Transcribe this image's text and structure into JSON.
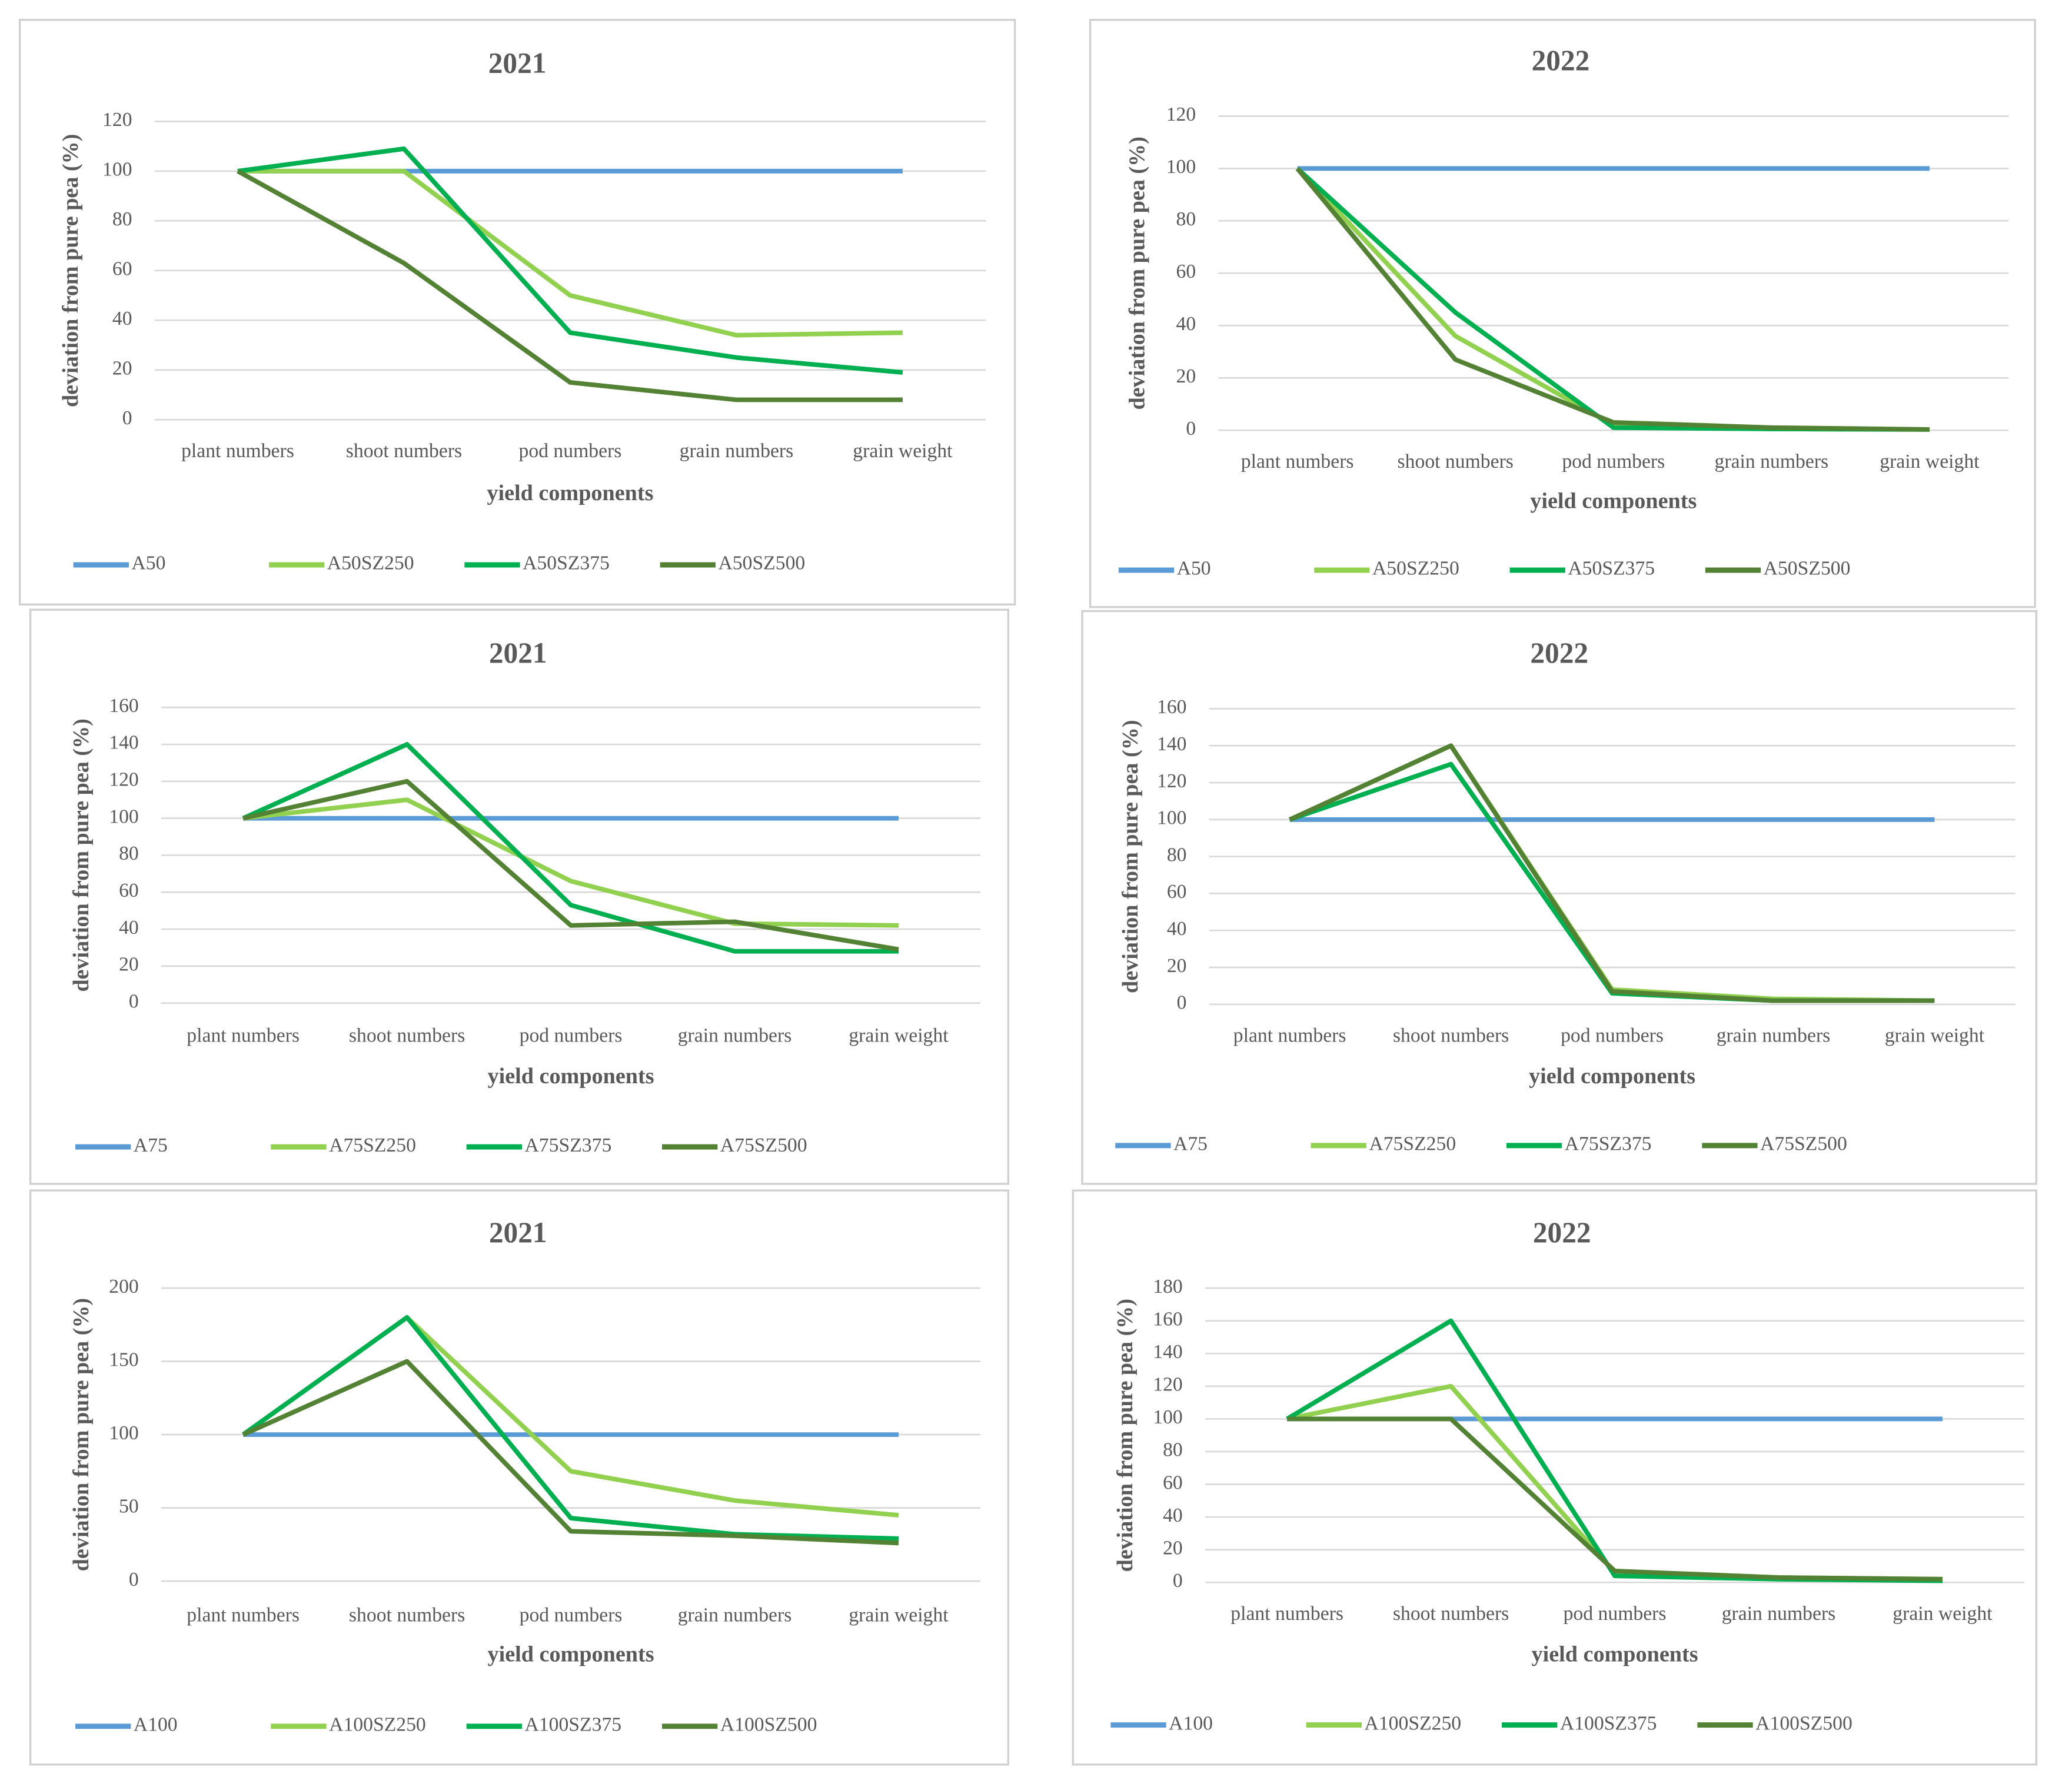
{
  "chart_data": [
    {
      "type": "line",
      "title": "2021",
      "x_label": "yield components",
      "y_label": "deviation from pure pea (%)",
      "categories": [
        "plant numbers",
        "shoot numbers",
        "pod numbers",
        "grain numbers",
        "grain weight"
      ],
      "ylim": [
        0,
        120
      ],
      "yticks": [
        0,
        20,
        40,
        60,
        80,
        100,
        120
      ],
      "grid": true,
      "series": [
        {
          "name": "A50",
          "color": "#5b9bd5",
          "values": [
            100,
            100,
            100,
            100,
            100
          ]
        },
        {
          "name": "A50SZ250",
          "color": "#92d050",
          "values": [
            100,
            100,
            50,
            34,
            35
          ]
        },
        {
          "name": "A50SZ375",
          "color": "#00b050",
          "values": [
            100,
            109,
            35,
            25,
            19
          ]
        },
        {
          "name": "A50SZ500",
          "color": "#548235",
          "values": [
            100,
            63,
            15,
            8,
            8
          ]
        }
      ]
    },
    {
      "type": "line",
      "title": "2022",
      "x_label": "yield components",
      "y_label": "deviation from pure pea (%)",
      "categories": [
        "plant numbers",
        "shoot numbers",
        "pod numbers",
        "grain numbers",
        "grain weight"
      ],
      "ylim": [
        0,
        120
      ],
      "yticks": [
        0,
        20,
        40,
        60,
        80,
        100,
        120
      ],
      "grid": true,
      "series": [
        {
          "name": "A50",
          "color": "#5b9bd5",
          "values": [
            100,
            100,
            100,
            100,
            100
          ]
        },
        {
          "name": "A50SZ250",
          "color": "#92d050",
          "values": [
            100,
            36,
            2,
            0.5,
            0.3
          ]
        },
        {
          "name": "A50SZ375",
          "color": "#00b050",
          "values": [
            100,
            45,
            1,
            0.5,
            0.3
          ]
        },
        {
          "name": "A50SZ500",
          "color": "#548235",
          "values": [
            100,
            27,
            3,
            1,
            0.3
          ]
        }
      ]
    },
    {
      "type": "line",
      "title": "2021",
      "x_label": "yield components",
      "y_label": "deviation from pure pea (%)",
      "categories": [
        "plant numbers",
        "shoot numbers",
        "pod numbers",
        "grain numbers",
        "grain weight"
      ],
      "ylim": [
        0,
        160
      ],
      "yticks": [
        0,
        20,
        40,
        60,
        80,
        100,
        120,
        140,
        160
      ],
      "grid": true,
      "series": [
        {
          "name": "A75",
          "color": "#5b9bd5",
          "values": [
            100,
            100,
            100,
            100,
            100
          ]
        },
        {
          "name": "A75SZ250",
          "color": "#92d050",
          "values": [
            100,
            110,
            66,
            43,
            42
          ]
        },
        {
          "name": "A75SZ375",
          "color": "#00b050",
          "values": [
            100,
            140,
            53,
            28,
            28
          ]
        },
        {
          "name": "A75SZ500",
          "color": "#548235",
          "values": [
            100,
            120,
            42,
            44,
            29
          ]
        }
      ]
    },
    {
      "type": "line",
      "title": "2022",
      "x_label": "yield components",
      "y_label": "deviation from pure pea (%)",
      "categories": [
        "plant numbers",
        "shoot numbers",
        "pod numbers",
        "grain numbers",
        "grain weight"
      ],
      "ylim": [
        0,
        160
      ],
      "yticks": [
        0,
        20,
        40,
        60,
        80,
        100,
        120,
        140,
        160
      ],
      "grid": true,
      "series": [
        {
          "name": "A75",
          "color": "#5b9bd5",
          "values": [
            100,
            100,
            100,
            100,
            100
          ]
        },
        {
          "name": "A75SZ250",
          "color": "#92d050",
          "values": [
            100,
            140,
            8,
            3,
            2
          ]
        },
        {
          "name": "A75SZ375",
          "color": "#00b050",
          "values": [
            100,
            130,
            6,
            2,
            2
          ]
        },
        {
          "name": "A75SZ500",
          "color": "#548235",
          "values": [
            100,
            140,
            7,
            2,
            2
          ]
        }
      ]
    },
    {
      "type": "line",
      "title": "2021",
      "x_label": "yield components",
      "y_label": "deviation from pure pea (%)",
      "categories": [
        "plant numbers",
        "shoot numbers",
        "pod numbers",
        "grain numbers",
        "grain weight"
      ],
      "ylim": [
        0,
        200
      ],
      "yticks": [
        0,
        50,
        100,
        150,
        200
      ],
      "grid": true,
      "series": [
        {
          "name": "A100",
          "color": "#5b9bd5",
          "values": [
            100,
            100,
            100,
            100,
            100
          ]
        },
        {
          "name": "A100SZ250",
          "color": "#92d050",
          "values": [
            100,
            180,
            75,
            55,
            45
          ]
        },
        {
          "name": "A100SZ375",
          "color": "#00b050",
          "values": [
            100,
            180,
            43,
            32,
            29
          ]
        },
        {
          "name": "A100SZ500",
          "color": "#548235",
          "values": [
            100,
            150,
            34,
            31,
            26
          ]
        }
      ]
    },
    {
      "type": "line",
      "title": "2022",
      "x_label": "yield components",
      "y_label": "deviation from pure pea (%)",
      "categories": [
        "plant numbers",
        "shoot numbers",
        "pod numbers",
        "grain numbers",
        "grain weight"
      ],
      "ylim": [
        0,
        180
      ],
      "yticks": [
        0,
        20,
        40,
        60,
        80,
        100,
        120,
        140,
        160,
        180
      ],
      "grid": true,
      "series": [
        {
          "name": "A100",
          "color": "#5b9bd5",
          "values": [
            100,
            100,
            100,
            100,
            100
          ]
        },
        {
          "name": "A100SZ250",
          "color": "#92d050",
          "values": [
            100,
            120,
            6,
            3,
            2
          ]
        },
        {
          "name": "A100SZ375",
          "color": "#00b050",
          "values": [
            100,
            160,
            4,
            2,
            1
          ]
        },
        {
          "name": "A100SZ500",
          "color": "#548235",
          "values": [
            100,
            100,
            7,
            3,
            2
          ]
        }
      ]
    }
  ]
}
